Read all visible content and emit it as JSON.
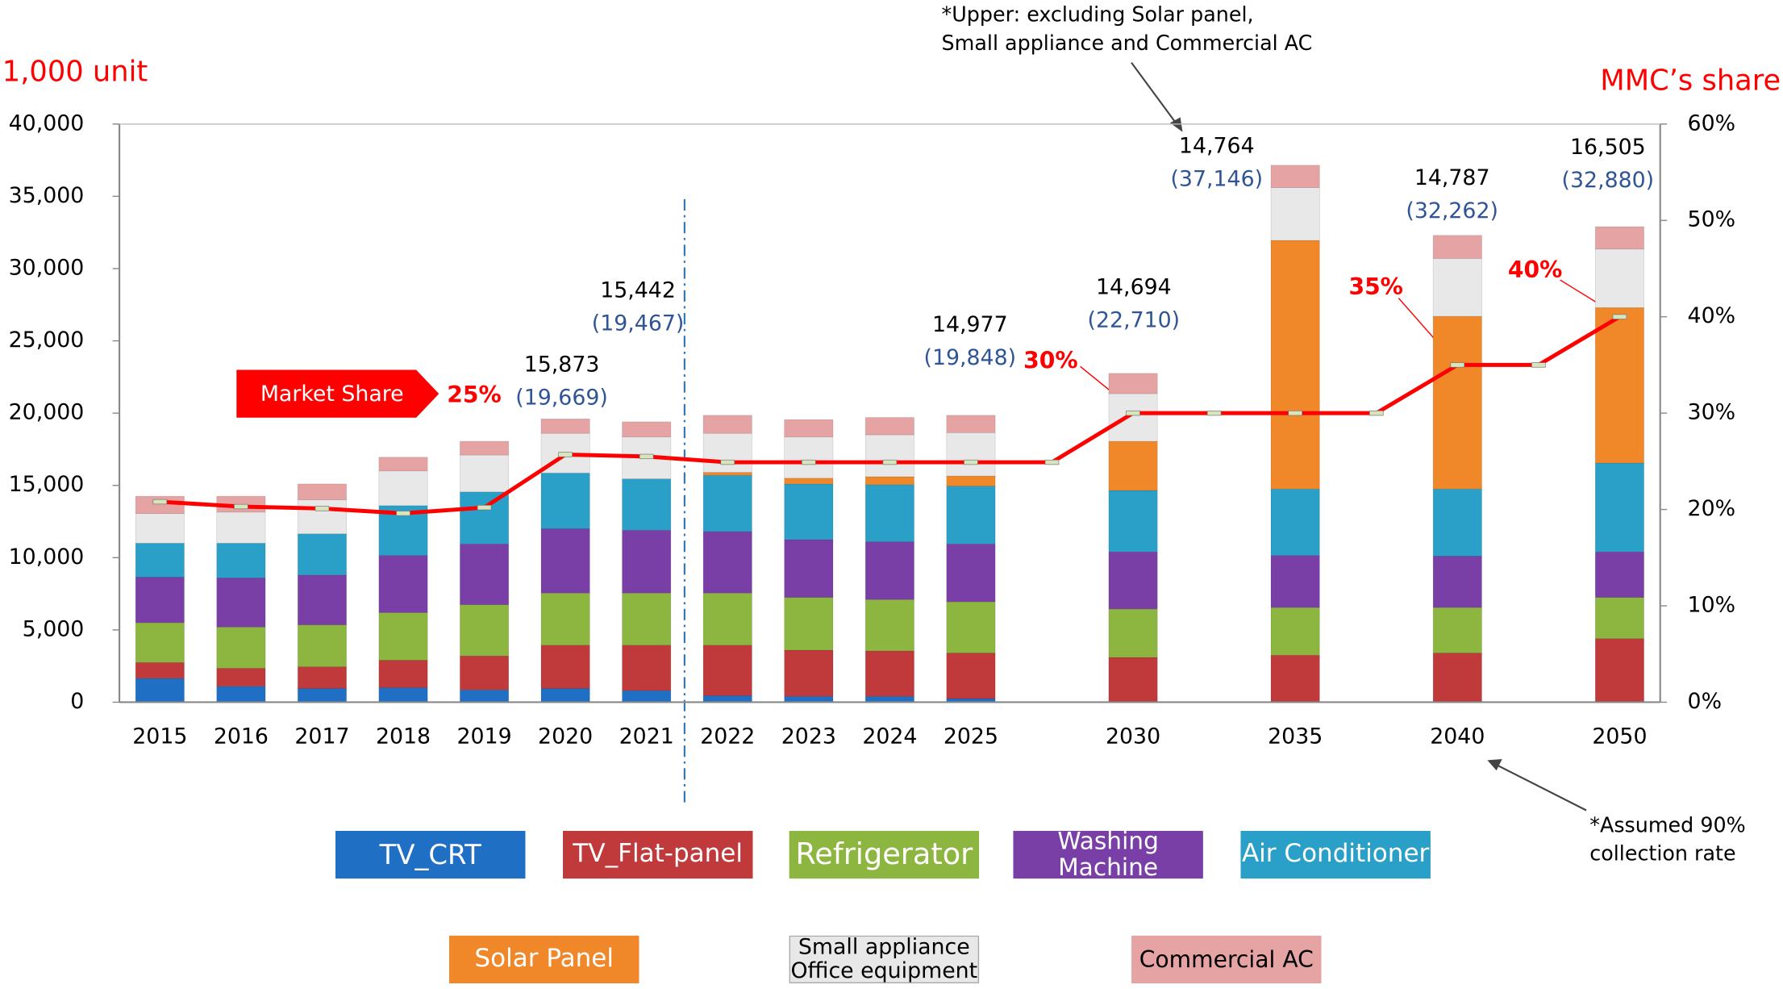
{
  "chart_data": {
    "type": "stacked_bar_line",
    "y_axis_label": "1,000 unit",
    "y2_axis_label": "MMC’s share",
    "categories": [
      "2015",
      "2016",
      "2017",
      "2018",
      "2019",
      "2020",
      "2021",
      "2022",
      "2023",
      "2024",
      "2025",
      null,
      "2030",
      null,
      "2035",
      null,
      "2040",
      null,
      "2050"
    ],
    "series": [
      {
        "name": "TV_CRT",
        "color": "#1f6fc5",
        "values": [
          1650,
          1100,
          950,
          1000,
          850,
          950,
          800,
          450,
          400,
          400,
          250,
          null,
          0,
          null,
          0,
          null,
          0,
          null,
          0
        ]
      },
      {
        "name": "TV_Flat-panel",
        "color": "#c0393b",
        "values": [
          1100,
          1250,
          1500,
          1900,
          2350,
          3000,
          3150,
          3500,
          3200,
          3150,
          3150,
          null,
          3100,
          null,
          3250,
          null,
          3400,
          null,
          4400
        ]
      },
      {
        "name": "Refrigerator",
        "color": "#8db640",
        "values": [
          2750,
          2850,
          2900,
          3300,
          3550,
          3600,
          3600,
          3600,
          3650,
          3550,
          3550,
          null,
          3350,
          null,
          3300,
          null,
          3150,
          null,
          2850
        ]
      },
      {
        "name": "Washing Machine",
        "color": "#7a3fa6",
        "values": [
          3150,
          3400,
          3450,
          3950,
          4200,
          4450,
          4350,
          4250,
          4000,
          4000,
          4000,
          null,
          3950,
          null,
          3600,
          null,
          3550,
          null,
          3150
        ]
      },
      {
        "name": "Air Conditioner",
        "color": "#2aa0c8",
        "values": [
          2350,
          2400,
          2850,
          3450,
          3600,
          3850,
          3550,
          3900,
          3850,
          3950,
          4000,
          null,
          4250,
          null,
          4600,
          null,
          4650,
          null,
          6150
        ]
      },
      {
        "name": "Solar Panel",
        "color": "#f0882a",
        "values": [
          0,
          0,
          0,
          0,
          0,
          0,
          0,
          200,
          400,
          550,
          700,
          null,
          3400,
          null,
          17200,
          null,
          11950,
          null,
          10750
        ]
      },
      {
        "name": "Small appliance\nOffice equipment",
        "color": "#e8e8e8",
        "values": [
          2050,
          2150,
          2350,
          2400,
          2550,
          2750,
          2900,
          2700,
          2850,
          2900,
          3000,
          null,
          3300,
          null,
          3650,
          null,
          4000,
          null,
          4050
        ]
      },
      {
        "name": "Commercial AC",
        "color": "#e6a3a3",
        "values": [
          1200,
          1100,
          1100,
          950,
          950,
          1000,
          1050,
          1250,
          1200,
          1200,
          1200,
          null,
          1400,
          null,
          1550,
          null,
          1600,
          null,
          1550
        ]
      },
      {
        "name": "Market Share",
        "color": "#ff0000",
        "axis": "y2",
        "values": [
          20.8,
          20.3,
          20.1,
          19.6,
          20.2,
          25.7,
          25.5,
          24.9,
          24.9,
          24.9,
          24.9,
          24.9,
          30,
          30,
          30,
          30,
          35,
          35,
          40
        ]
      }
    ],
    "ylim": [
      0,
      40000
    ],
    "yticks": [
      {
        "value": 0,
        "label": "0"
      },
      {
        "value": 5000,
        "label": "5,000"
      },
      {
        "value": 10000,
        "label": "10,000"
      },
      {
        "value": 15000,
        "label": "15,000"
      },
      {
        "value": 20000,
        "label": "20,000"
      },
      {
        "value": 25000,
        "label": "25,000"
      },
      {
        "value": 30000,
        "label": "30,000"
      },
      {
        "value": 35000,
        "label": "35,000"
      },
      {
        "value": 40000,
        "label": "40,000"
      }
    ],
    "y2lim": [
      0,
      60
    ],
    "y2ticks": [
      {
        "value": 0,
        "label": "0%"
      },
      {
        "value": 10,
        "label": "10%"
      },
      {
        "value": 20,
        "label": "20%"
      },
      {
        "value": 30,
        "label": "30%"
      },
      {
        "value": 40,
        "label": "40%"
      },
      {
        "value": 50,
        "label": "50%"
      },
      {
        "value": 60,
        "label": "60%"
      }
    ],
    "grid": false,
    "total_labels": [
      {
        "upper": "15,873",
        "total": "(19,669)"
      },
      {
        "upper": "15,442",
        "total": "(19,467)"
      },
      {
        "upper": "14,977",
        "total": "(19,848)"
      },
      {
        "upper": "14,694",
        "total": "(22,710)"
      },
      {
        "upper": "14,764",
        "total": "(37,146)"
      },
      {
        "upper": "14,787",
        "total": "(32,262)"
      },
      {
        "upper": "16,505",
        "total": "(32,880)"
      }
    ],
    "share_labels": [
      "25%",
      "30%",
      "35%",
      "40%"
    ],
    "notes": [
      "*Upper: excluding Solar panel,",
      "Small appliance and Commercial AC",
      "*Assumed 90%",
      "collection rate"
    ]
  }
}
